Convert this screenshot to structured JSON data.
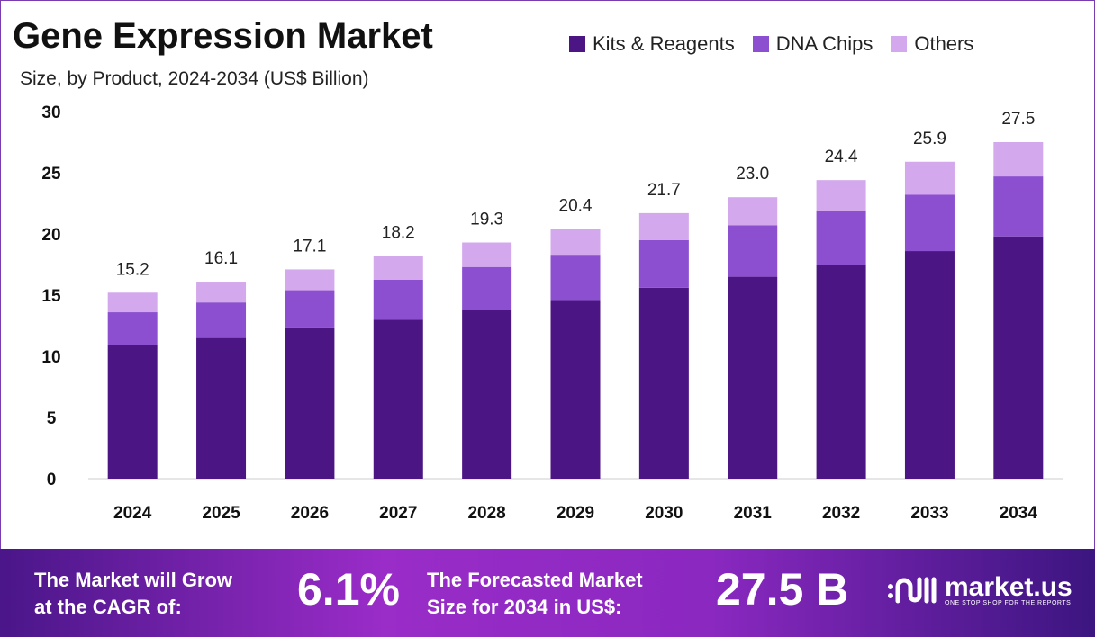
{
  "chart_data": {
    "type": "stacked-bar",
    "title": "Gene Expression Market",
    "subtitle": "Size, by Product, 2024-2034 (US$ Billion)",
    "categories": [
      "2024",
      "2025",
      "2026",
      "2027",
      "2028",
      "2029",
      "2030",
      "2031",
      "2032",
      "2033",
      "2034"
    ],
    "series": [
      {
        "name": "Kits & Reagents",
        "color": "#4b1584",
        "values": [
          10.9,
          11.5,
          12.3,
          13.0,
          13.8,
          14.6,
          15.6,
          16.5,
          17.5,
          18.6,
          19.8
        ]
      },
      {
        "name": "DNA Chips",
        "color": "#8b4fcf",
        "values": [
          2.7,
          2.9,
          3.1,
          3.25,
          3.5,
          3.7,
          3.9,
          4.2,
          4.4,
          4.6,
          4.9
        ]
      },
      {
        "name": "Others",
        "color": "#d4a8ec",
        "values": [
          1.6,
          1.7,
          1.7,
          1.95,
          2.0,
          2.1,
          2.2,
          2.3,
          2.5,
          2.7,
          2.8
        ]
      }
    ],
    "totals": [
      "15.2",
      "16.1",
      "17.1",
      "18.2",
      "19.3",
      "20.4",
      "21.7",
      "23.0",
      "24.4",
      "25.9",
      "27.5"
    ],
    "yticks": [
      "0",
      "5",
      "10",
      "15",
      "20",
      "25",
      "30"
    ],
    "ylim": [
      0,
      30
    ],
    "grid": false,
    "legend": "top-right"
  },
  "footer": {
    "cagr_text_line1": "The Market will Grow",
    "cagr_text_line2": "at the CAGR of:",
    "cagr_value": "6.1%",
    "forecast_text_line1": "The Forecasted Market",
    "forecast_text_line2": "Size for 2034 in US$:",
    "forecast_value": "27.5 B",
    "logo_text": "market.us",
    "logo_tagline": "ONE STOP SHOP FOR THE REPORTS"
  }
}
